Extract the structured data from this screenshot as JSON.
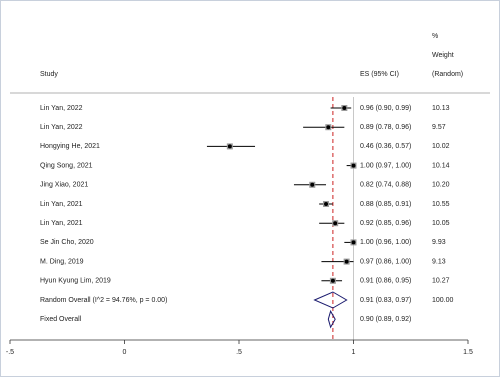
{
  "chart_data": {
    "type": "forest",
    "headers": {
      "study": "Study",
      "es": "ES (95% CI)",
      "weight": [
        "%",
        "Weight",
        "(Random)"
      ]
    },
    "categories": [
      "Lin Yan, 2022",
      "Lin Yan, 2022",
      "Hongying He, 2021",
      "Qing Song, 2021",
      "Jing Xiao, 2021",
      "Lin Yan, 2021",
      "Lin Yan, 2021",
      "Se Jin Cho, 2020",
      "M. Ding, 2019",
      "Hyun Kyung Lim, 2019",
      "Random Overall  (I^2 = 94.76%, p = 0.00)",
      "Fixed Overall"
    ],
    "kinds": [
      "study",
      "study",
      "study",
      "study",
      "study",
      "study",
      "study",
      "study",
      "study",
      "study",
      "pooled",
      "pooled"
    ],
    "values": [
      0.96,
      0.89,
      0.46,
      1.0,
      0.82,
      0.88,
      0.92,
      1.0,
      0.97,
      0.91,
      0.91,
      0.9
    ],
    "lower": [
      0.9,
      0.78,
      0.36,
      0.97,
      0.74,
      0.85,
      0.85,
      0.96,
      0.86,
      0.86,
      0.83,
      0.89
    ],
    "upper": [
      0.99,
      0.96,
      0.57,
      1.0,
      0.88,
      0.91,
      0.96,
      1.0,
      1.0,
      0.95,
      0.97,
      0.92
    ],
    "value_labels": [
      "0.96 (0.90, 0.99)",
      "0.89 (0.78, 0.96)",
      "0.46 (0.36, 0.57)",
      "1.00 (0.97, 1.00)",
      "0.82 (0.74, 0.88)",
      "0.88 (0.85, 0.91)",
      "0.92 (0.85, 0.96)",
      "1.00 (0.96, 1.00)",
      "0.97 (0.86, 1.00)",
      "0.91 (0.86, 0.95)",
      "0.91 (0.83, 0.97)",
      "0.90 (0.89, 0.92)"
    ],
    "weights": [
      "10.13",
      "9.57",
      "10.02",
      "10.14",
      "10.20",
      "10.55",
      "10.05",
      "9.93",
      "9.13",
      "10.27",
      "100.00",
      null
    ],
    "xlim": [
      -0.5,
      1.5
    ],
    "xticks": [
      {
        "value": -0.5,
        "label": "-.5"
      },
      0,
      {
        "value": 0.5,
        "label": ".5"
      },
      1,
      1.5
    ],
    "overall_line": 0.91,
    "overall_line_color": "#cc2222",
    "reference_line": 1,
    "color": "#000000",
    "diamond_color": "#1a1a6e",
    "box_color": "#9a9a9a"
  }
}
